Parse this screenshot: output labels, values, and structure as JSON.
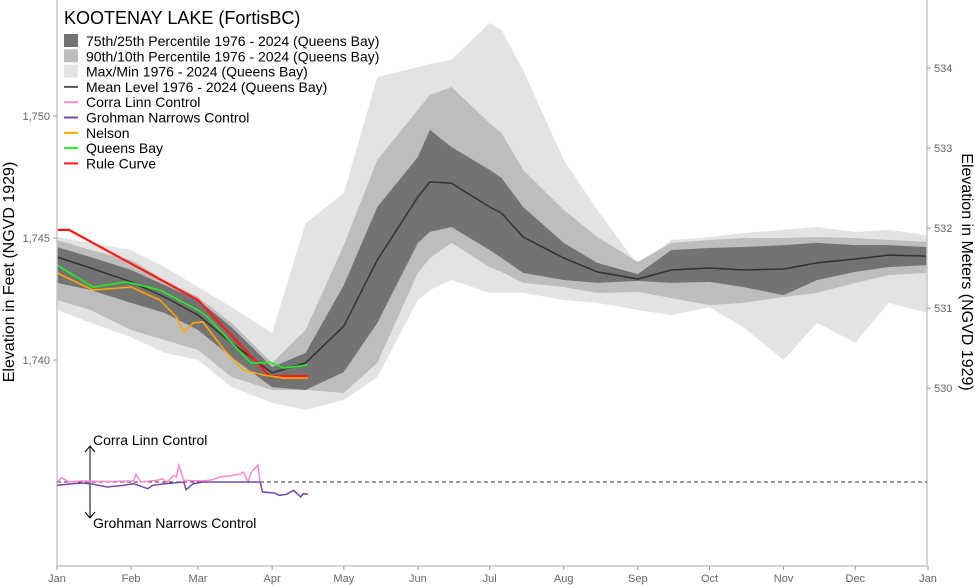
{
  "chart_data": {
    "type": "area",
    "title": "KOOTENAY LAKE (FortisBC)",
    "ylabel": "Elevation in Feet (NGVD 1929)",
    "ylabel_right": "Elevation in Meters (NGVD 1929)",
    "y_ticks": [
      "1,740",
      "1,745",
      "1,750"
    ],
    "y_tick_values": [
      1740,
      1745,
      1750
    ],
    "y_right_ticks": [
      "530",
      "531",
      "532",
      "533",
      "534"
    ],
    "y_right_tick_values": [
      530,
      531,
      532,
      533,
      534
    ],
    "x_ticks": [
      "Jan",
      "Feb",
      "Mar",
      "Apr",
      "May",
      "Jun",
      "Jul",
      "Aug",
      "Sep",
      "Oct",
      "Nov",
      "Dec",
      "Jan"
    ],
    "x_tick_dates": [
      "01-01",
      "02-01",
      "03-01",
      "04-01",
      "05-01",
      "06-01",
      "07-01",
      "08-01",
      "09-01",
      "10-01",
      "11-01",
      "12-01",
      "12-31"
    ],
    "ylim": [
      1734.5,
      1754.8
    ],
    "grid": false,
    "legend_position": "top-left",
    "colors": {
      "p75_25": "#737373",
      "p90_10": "#bdbdbd",
      "maxmin": "#e3e3e3",
      "mean": "#333333",
      "corra_linn": "#ff88cc",
      "grohman": "#7448a8",
      "nelson": "#ffa500",
      "queens_bay": "#22ee22",
      "rule_curve": "#ff1a1a"
    },
    "legend": [
      {
        "label": "75th/25th Percentile 1976 - 2024 (Queens Bay)",
        "kind": "box",
        "color": "#737373"
      },
      {
        "label": "90th/10th Percentile 1976 - 2024 (Queens Bay)",
        "kind": "box",
        "color": "#bdbdbd"
      },
      {
        "label": "Max/Min 1976 - 2024 (Queens Bay)",
        "kind": "box",
        "color": "#e3e3e3"
      },
      {
        "label": "Mean Level 1976 - 2024 (Queens Bay)",
        "kind": "line",
        "color": "#555555"
      },
      {
        "label": "Corra Linn Control",
        "kind": "line",
        "color": "#ff88cc"
      },
      {
        "label": "Grohman Narrows Control",
        "kind": "line",
        "color": "#7448a8"
      },
      {
        "label": "Nelson",
        "kind": "line",
        "color": "#ffa500"
      },
      {
        "label": "Queens Bay",
        "kind": "line",
        "color": "#22ee22"
      },
      {
        "label": "Rule Curve",
        "kind": "line",
        "color": "#ff1a1a"
      }
    ],
    "band_dates": [
      "01-01",
      "01-15",
      "02-01",
      "02-15",
      "03-01",
      "03-15",
      "04-01",
      "04-15",
      "05-01",
      "05-15",
      "06-01",
      "06-06",
      "06-15",
      "07-01",
      "07-06",
      "07-15",
      "08-01",
      "08-15",
      "09-01",
      "09-15",
      "10-01",
      "10-15",
      "11-01",
      "11-15",
      "12-01",
      "12-15",
      "12-31"
    ],
    "bands": {
      "max": [
        1745.04,
        1744.8,
        1744.51,
        1743.81,
        1742.99,
        1742.17,
        1741.11,
        1745.61,
        1746.84,
        1751.6,
        1752.01,
        1752.13,
        1752.3,
        1753.81,
        1753.52,
        1751.89,
        1748.2,
        1746.15,
        1743.89,
        1744.92,
        1745.04,
        1745.2,
        1745.33,
        1745.45,
        1745.25,
        1745.33,
        1745.12
      ],
      "min": [
        1742.05,
        1741.52,
        1740.94,
        1740.29,
        1740.0,
        1738.89,
        1738.24,
        1737.95,
        1738.36,
        1739.3,
        1742.46,
        1742.87,
        1743.28,
        1742.75,
        1742.75,
        1742.75,
        1742.46,
        1742.34,
        1742.05,
        1741.84,
        1742.17,
        1741.35,
        1740.0,
        1741.52,
        1740.7,
        1742.34,
        1741.93
      ],
      "p90": [
        1744.92,
        1744.51,
        1744.1,
        1743.28,
        1742.58,
        1741.52,
        1739.88,
        1741.23,
        1744.71,
        1748.2,
        1750.25,
        1750.86,
        1751.19,
        1749.71,
        1749.3,
        1747.79,
        1746.15,
        1745.04,
        1744.02,
        1744.8,
        1744.92,
        1745.0,
        1745.0,
        1745.04,
        1745.0,
        1744.92,
        1744.84
      ],
      "p10": [
        1742.46,
        1742.05,
        1741.23,
        1740.82,
        1740.41,
        1739.3,
        1738.77,
        1738.77,
        1738.65,
        1739.88,
        1743.57,
        1744.18,
        1744.8,
        1743.81,
        1743.61,
        1743.16,
        1742.99,
        1742.75,
        1742.79,
        1742.54,
        1742.25,
        1742.34,
        1742.58,
        1742.75,
        1743.16,
        1743.48,
        1743.57
      ],
      "p75": [
        1744.63,
        1744.22,
        1743.69,
        1743.07,
        1742.46,
        1741.35,
        1739.71,
        1740.29,
        1743.07,
        1746.27,
        1748.32,
        1749.43,
        1748.73,
        1747.79,
        1747.46,
        1746.27,
        1744.8,
        1743.98,
        1743.52,
        1744.51,
        1744.59,
        1744.63,
        1744.71,
        1744.8,
        1744.71,
        1744.71,
        1744.63
      ],
      "p25": [
        1743.16,
        1742.87,
        1742.34,
        1741.93,
        1741.23,
        1740.12,
        1738.89,
        1738.77,
        1739.51,
        1741.52,
        1744.8,
        1745.25,
        1745.45,
        1744.51,
        1744.18,
        1743.57,
        1743.28,
        1743.16,
        1743.24,
        1743.16,
        1743.2,
        1742.99,
        1742.66,
        1743.28,
        1743.61,
        1743.81,
        1743.89
      ],
      "mean": [
        1744.22,
        1743.77,
        1743.2,
        1742.58,
        1741.84,
        1740.7,
        1739.47,
        1739.88,
        1741.39,
        1744.1,
        1746.68,
        1747.3,
        1747.25,
        1746.27,
        1746.02,
        1745.04,
        1744.18,
        1743.61,
        1743.32,
        1743.69,
        1743.77,
        1743.69,
        1743.73,
        1743.98,
        1744.14,
        1744.3,
        1744.26
      ]
    },
    "series": [
      {
        "name": "Rule Curve",
        "key": "rule_curve",
        "points": [
          [
            "01-01",
            1745.33
          ],
          [
            "01-06",
            1745.33
          ],
          [
            "03-01",
            1742.46
          ],
          [
            "03-31",
            1739.34
          ],
          [
            "04-16",
            1739.34
          ]
        ]
      },
      {
        "name": "Nelson",
        "key": "nelson",
        "points": [
          [
            "01-01",
            1743.57
          ],
          [
            "01-16",
            1742.87
          ],
          [
            "02-01",
            1742.99
          ],
          [
            "02-13",
            1742.46
          ],
          [
            "02-20",
            1741.76
          ],
          [
            "02-23",
            1741.15
          ],
          [
            "02-27",
            1741.52
          ],
          [
            "03-03",
            1741.56
          ],
          [
            "03-12",
            1740.41
          ],
          [
            "03-20",
            1739.59
          ],
          [
            "03-28",
            1739.39
          ],
          [
            "04-06",
            1739.26
          ],
          [
            "04-16",
            1739.26
          ]
        ]
      },
      {
        "name": "Queens Bay",
        "key": "queens_bay",
        "points": [
          [
            "01-01",
            1743.89
          ],
          [
            "01-16",
            1742.99
          ],
          [
            "01-30",
            1743.2
          ],
          [
            "02-13",
            1742.87
          ],
          [
            "03-01",
            1742.05
          ],
          [
            "03-05",
            1741.76
          ],
          [
            "03-10",
            1741.23
          ],
          [
            "03-23",
            1739.88
          ],
          [
            "03-28",
            1739.88
          ],
          [
            "03-31",
            1739.92
          ],
          [
            "04-06",
            1739.67
          ],
          [
            "04-16",
            1739.8
          ]
        ]
      }
    ],
    "control_panel": {
      "label_up": "Corra Linn Control",
      "label_down": "Grohman Narrows Control",
      "corra_linn": [
        [
          "01-01",
          0
        ],
        [
          "01-03",
          0.43
        ],
        [
          "01-06",
          0
        ],
        [
          "01-11",
          0.1
        ],
        [
          "01-22",
          0.05
        ],
        [
          "02-02",
          0.1
        ],
        [
          "02-03",
          0.77
        ],
        [
          "02-05",
          0
        ],
        [
          "02-12",
          0.17
        ],
        [
          "02-14",
          0.33
        ],
        [
          "02-16",
          0
        ],
        [
          "02-19",
          0.67
        ],
        [
          "02-20",
          0.5
        ],
        [
          "02-21",
          1.67
        ],
        [
          "02-23",
          0.17
        ],
        [
          "03-03",
          0.1
        ],
        [
          "03-07",
          0.23
        ],
        [
          "03-10",
          0.5
        ],
        [
          "03-13",
          0.57
        ],
        [
          "03-16",
          0.67
        ],
        [
          "03-19",
          0.83
        ],
        [
          "03-20",
          1.0
        ],
        [
          "03-22",
          0
        ],
        [
          "03-23",
          0.83
        ],
        [
          "03-24",
          1.17
        ],
        [
          "03-26",
          1.67
        ],
        [
          "03-27",
          0
        ]
      ],
      "grohman": [
        [
          "01-01",
          -0.33
        ],
        [
          "01-11",
          -0.1
        ],
        [
          "01-15",
          -0.17
        ],
        [
          "01-22",
          -0.5
        ],
        [
          "01-29",
          -0.33
        ],
        [
          "02-02",
          -0.17
        ],
        [
          "02-08",
          -0.67
        ],
        [
          "02-10",
          -0.33
        ],
        [
          "02-15",
          -0.17
        ],
        [
          "02-23",
          0
        ],
        [
          "02-24",
          -0.77
        ],
        [
          "02-27",
          -0.17
        ],
        [
          "03-03",
          0
        ],
        [
          "03-27",
          0
        ],
        [
          "03-28",
          -1.0
        ],
        [
          "04-02",
          -1.1
        ],
        [
          "04-04",
          -1.33
        ],
        [
          "04-07",
          -1.23
        ],
        [
          "04-10",
          -0.83
        ],
        [
          "04-13",
          -1.5
        ],
        [
          "04-14",
          -1.17
        ],
        [
          "04-16",
          -1.23
        ]
      ]
    }
  }
}
